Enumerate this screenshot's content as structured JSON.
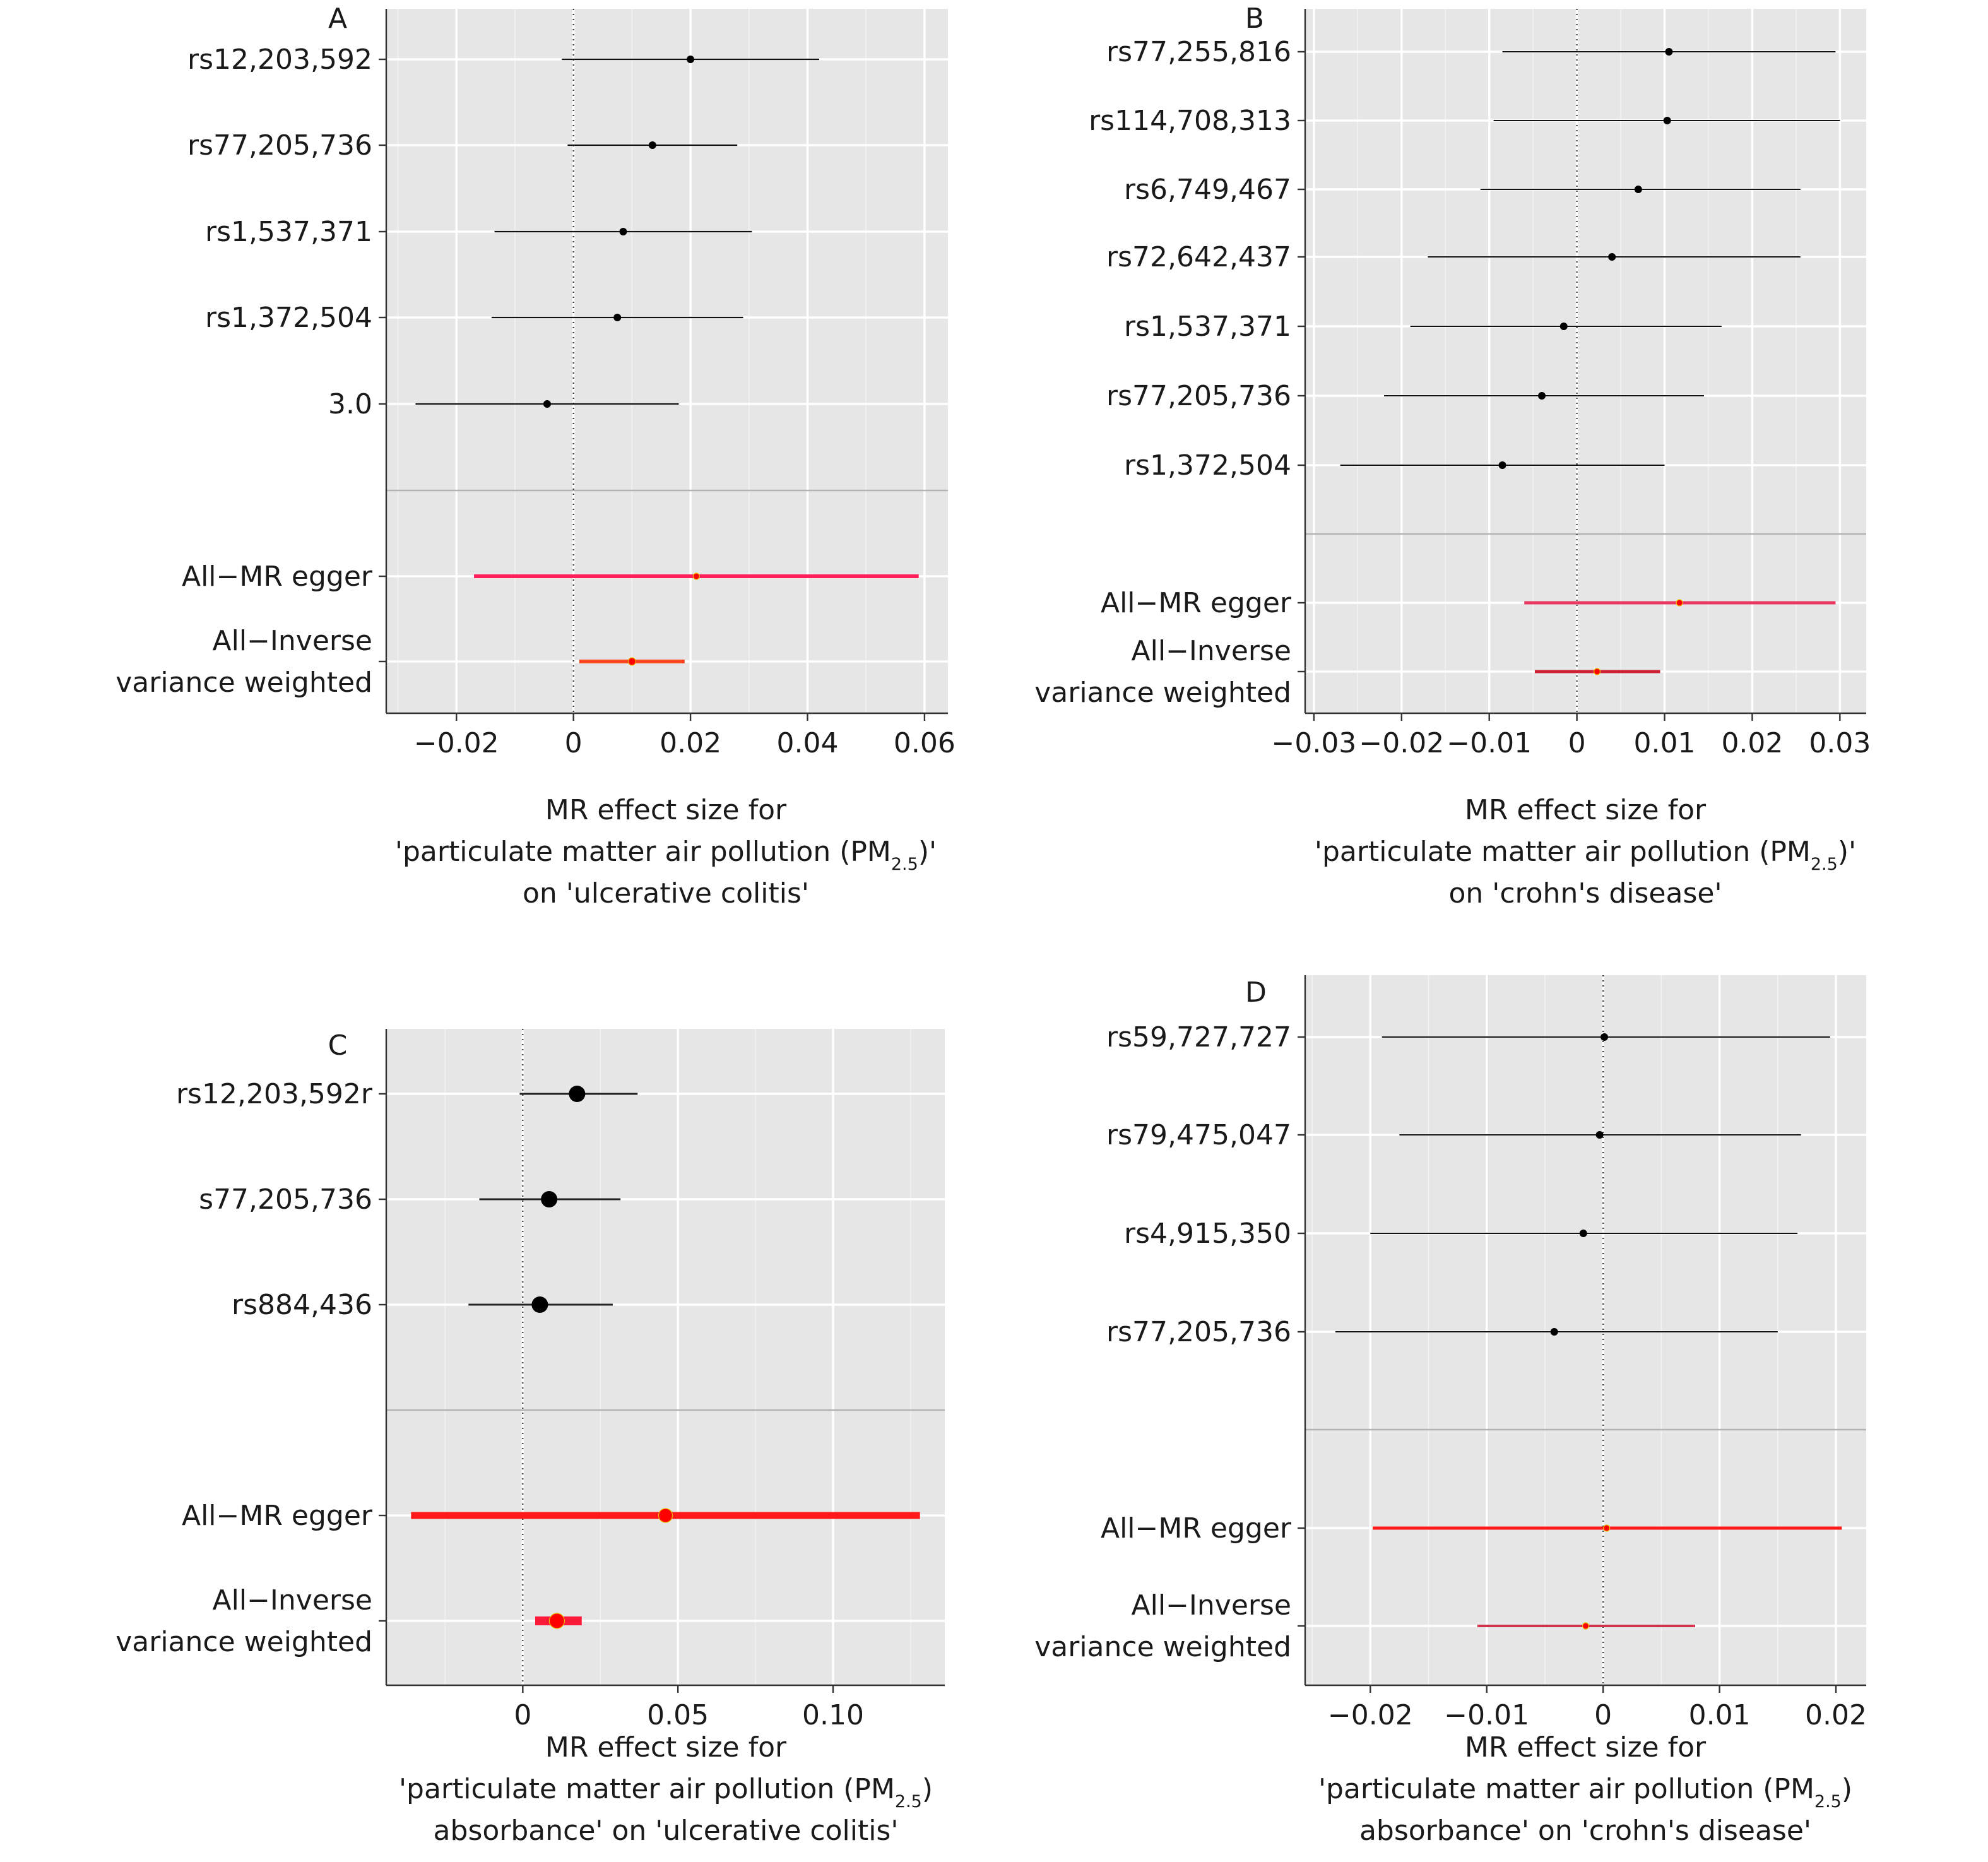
{
  "figure": {
    "colors": {
      "background": "#ffffff",
      "panel_background": "#e6e6e6",
      "snp_estimate": "#000000",
      "pooled_estimate": "#ff0000"
    }
  },
  "chart_data": [
    {
      "id": "A",
      "type": "forest",
      "panel_letter": "A",
      "xlabel": {
        "line1": "MR effect size for",
        "line2_pre": "'particulate matter air pollution (PM",
        "line2_sub": "2.5",
        "line2_post": ")'",
        "line3": "on 'ulcerative colitis'"
      },
      "xlim": [
        -0.032,
        0.064
      ],
      "xticks": [
        -0.02,
        0,
        0.02,
        0.04,
        0.06
      ],
      "xtick_labels": [
        "−0.02",
        "0",
        "0.02",
        "0.04",
        "0.06"
      ],
      "snps": [
        {
          "label": "rs12,203,592",
          "b": 0.02,
          "lo": -0.002,
          "hi": 0.042
        },
        {
          "label": "rs77,205,736",
          "b": 0.0135,
          "lo": -0.001,
          "hi": 0.028
        },
        {
          "label": "rs1,537,371",
          "b": 0.0085,
          "lo": -0.0135,
          "hi": 0.0305
        },
        {
          "label": "rs1,372,504",
          "b": 0.0075,
          "lo": -0.014,
          "hi": 0.029
        },
        {
          "label": "3.0",
          "b": -0.0045,
          "lo": -0.027,
          "hi": 0.018
        }
      ],
      "pooled": [
        {
          "label": "All−MR egger",
          "b": 0.021,
          "lo": -0.017,
          "hi": 0.059
        },
        {
          "label_lines": [
            "All−Inverse",
            "variance weighted"
          ],
          "b": 0.01,
          "lo": 0.001,
          "hi": 0.019
        }
      ]
    },
    {
      "id": "B",
      "type": "forest",
      "panel_letter": "B",
      "xlabel": {
        "line1": "MR effect size for",
        "line2_pre": "'particulate matter air pollution (PM",
        "line2_sub": "2.5",
        "line2_post": ")'",
        "line3": "on 'crohn's disease'"
      },
      "xlim": [
        -0.031,
        0.033
      ],
      "xticks": [
        -0.03,
        -0.02,
        -0.01,
        0,
        0.01,
        0.02,
        0.03
      ],
      "xtick_labels": [
        "−0.03",
        "−0.02",
        "−0.01",
        "0",
        "0.01",
        "0.02",
        "0.03"
      ],
      "snps": [
        {
          "label": "rs77,255,816",
          "b": 0.0105,
          "lo": -0.0085,
          "hi": 0.0295
        },
        {
          "label": "rs114,708,313",
          "b": 0.0103,
          "lo": -0.0095,
          "hi": 0.03
        },
        {
          "label": "rs6,749,467",
          "b": 0.007,
          "lo": -0.011,
          "hi": 0.0255
        },
        {
          "label": "rs72,642,437",
          "b": 0.004,
          "lo": -0.017,
          "hi": 0.0255
        },
        {
          "label": "rs1,537,371",
          "b": -0.0015,
          "lo": -0.019,
          "hi": 0.0165
        },
        {
          "label": "rs77,205,736",
          "b": -0.004,
          "lo": -0.022,
          "hi": 0.0145
        },
        {
          "label": "rs1,372,504",
          "b": -0.0085,
          "lo": -0.027,
          "hi": 0.01
        }
      ],
      "pooled": [
        {
          "label": "All−MR egger",
          "b": 0.0117,
          "lo": -0.006,
          "hi": 0.0295
        },
        {
          "label_lines": [
            "All−Inverse",
            "variance weighted"
          ],
          "b": 0.0023,
          "lo": -0.0048,
          "hi": 0.0095
        }
      ]
    },
    {
      "id": "C",
      "type": "forest",
      "panel_letter": "C",
      "xlabel": {
        "line1": "MR effect size for",
        "line2_pre": "'particulate matter air pollution (PM",
        "line2_sub": "2.5",
        "line2_post": ")",
        "line3": "absorbance' on 'ulcerative colitis'"
      },
      "xlim": [
        -0.044,
        0.136
      ],
      "xticks": [
        0,
        0.05,
        0.1
      ],
      "xtick_labels": [
        "0",
        "0.05",
        "0.10"
      ],
      "snps": [
        {
          "label": "rs12,203,592r",
          "b": 0.0175,
          "lo": -0.001,
          "hi": 0.037
        },
        {
          "label": "s77,205,736",
          "b": 0.0085,
          "lo": -0.014,
          "hi": 0.0315
        },
        {
          "label": "rs884,436",
          "b": 0.0055,
          "lo": -0.0175,
          "hi": 0.029
        }
      ],
      "pooled": [
        {
          "label": "All−MR egger",
          "b": 0.046,
          "lo": -0.036,
          "hi": 0.128
        },
        {
          "label_lines": [
            "All−Inverse",
            "variance weighted"
          ],
          "b": 0.011,
          "lo": 0.004,
          "hi": 0.019
        }
      ]
    },
    {
      "id": "D",
      "type": "forest",
      "panel_letter": "D",
      "xlabel": {
        "line1": "MR effect size for",
        "line2_pre": "'particulate matter air pollution (PM",
        "line2_sub": "2.5",
        "line2_post": ")",
        "line3": "absorbance' on 'crohn's disease'"
      },
      "xlim": [
        -0.0256,
        0.0226
      ],
      "xticks": [
        -0.02,
        -0.01,
        0,
        0.01,
        0.02
      ],
      "xtick_labels": [
        "−0.02",
        "−0.01",
        "0",
        "0.01",
        "0.02"
      ],
      "snps": [
        {
          "label": "rs59,727,727",
          "b": 0.0001,
          "lo": -0.019,
          "hi": 0.0195
        },
        {
          "label": "rs79,475,047",
          "b": -0.0003,
          "lo": -0.0175,
          "hi": 0.017
        },
        {
          "label": "rs4,915,350",
          "b": -0.0017,
          "lo": -0.02,
          "hi": 0.0167
        },
        {
          "label": "rs77,205,736",
          "b": -0.0042,
          "lo": -0.023,
          "hi": 0.015
        }
      ],
      "pooled": [
        {
          "label": "All−MR egger",
          "b": 0.0003,
          "lo": -0.0198,
          "hi": 0.0205
        },
        {
          "label_lines": [
            "All−Inverse",
            "variance weighted"
          ],
          "b": -0.0015,
          "lo": -0.0108,
          "hi": 0.0079
        }
      ]
    }
  ]
}
